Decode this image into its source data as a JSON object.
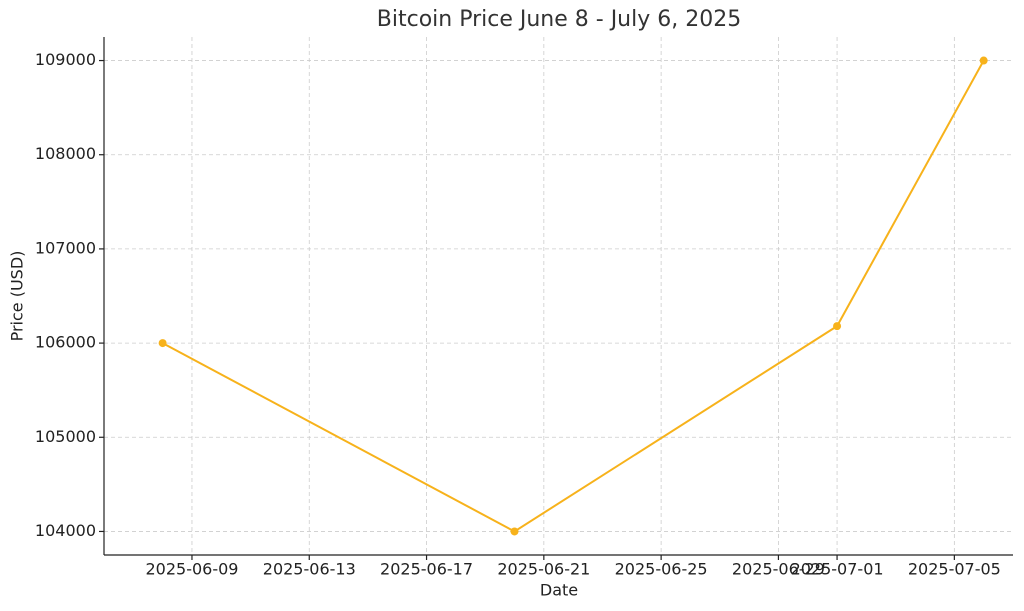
{
  "chart_data": {
    "type": "line",
    "title": "Bitcoin Price June 8 - July 6, 2025",
    "x_label": "Date",
    "y_label": "Price (USD)",
    "x": [
      "2025-06-08",
      "2025-06-20",
      "2025-07-01",
      "2025-07-06"
    ],
    "values": [
      106000,
      104000,
      106180,
      109000
    ],
    "color": "#f7b21b",
    "xlim": [
      "2025-06-06",
      "2025-07-07"
    ],
    "xticks": [
      "2025-06-09",
      "2025-06-13",
      "2025-06-17",
      "2025-06-21",
      "2025-06-25",
      "2025-06-29",
      "2025-07-01",
      "2025-07-05"
    ],
    "ylim": [
      103750,
      109250
    ],
    "yticks": [
      104000,
      105000,
      106000,
      107000,
      108000,
      109000
    ],
    "grid": true,
    "markers": true
  }
}
